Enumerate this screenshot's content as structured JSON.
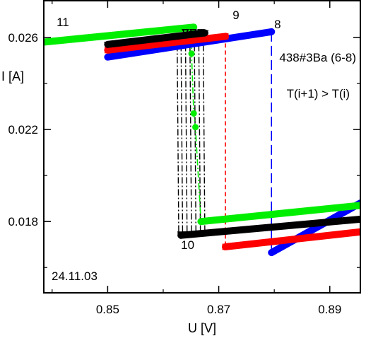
{
  "chart_data": {
    "type": "scatter",
    "xlabel": "U [V]",
    "ylabel": "I [A]",
    "xlim": [
      0.8385,
      0.8955
    ],
    "ylim": [
      0.0149,
      0.0276
    ],
    "xticks": [
      "0.85",
      "0.87",
      "0.89"
    ],
    "xtick_values": [
      0.85,
      0.87,
      0.89
    ],
    "xminor_values": [
      0.84,
      0.86,
      0.88
    ],
    "yticks": [
      "0.018",
      "0.022",
      "0.026"
    ],
    "ytick_values": [
      0.018,
      0.022,
      0.026
    ],
    "yminor_values": [
      0.016,
      0.02,
      0.024
    ],
    "grid": false,
    "annotations": [
      {
        "key": "sample",
        "text": "438#3Ba (6-8)",
        "anchor": "upper-right"
      },
      {
        "key": "condition",
        "text": "T(i+1) > T(i)",
        "anchor": "upper-right"
      },
      {
        "key": "date",
        "text": "24.11.03",
        "anchor": "lower-left"
      }
    ],
    "series": [
      {
        "name": "8",
        "color": "#0000ff",
        "marker": "circle",
        "upper_branch": {
          "x": [
            0.85,
            0.8795
          ],
          "y": [
            0.02515,
            0.02625
          ]
        },
        "lower_branch": {
          "x": [
            0.8795,
            0.8955
          ],
          "y": [
            0.01665,
            0.0188
          ]
        },
        "transition_line": {
          "x": [
            0.8795,
            0.8795
          ],
          "y": [
            0.02625,
            0.01665
          ],
          "style": "long-dash"
        },
        "label_x": 0.88,
        "label_y": 0.0264
      },
      {
        "name": "9",
        "color": "#ff0000",
        "marker": "square",
        "upper_branch": {
          "x": [
            0.85,
            0.8712
          ],
          "y": [
            0.02545,
            0.02605
          ]
        },
        "lower_branch": {
          "x": [
            0.8712,
            0.8955
          ],
          "y": [
            0.0169,
            0.01755
          ]
        },
        "transition_line": {
          "x": [
            0.8712,
            0.8712
          ],
          "y": [
            0.02605,
            0.0169
          ],
          "style": "dashed"
        },
        "label_x": 0.8725,
        "label_y": 0.0268
      },
      {
        "name": "10",
        "color": "#000000",
        "marker": "triangle-down",
        "upper_branch": {
          "x": [
            0.85,
            0.8675
          ],
          "y": [
            0.0257,
            0.0262
          ]
        },
        "lower_branch": {
          "x": [
            0.8632,
            0.8955
          ],
          "y": [
            0.0174,
            0.0181
          ]
        },
        "transition_line": {
          "x": [
            0.8632,
            0.8675
          ],
          "y": [
            0.0262,
            0.0174
          ],
          "style": "dash-dot"
        },
        "label_x": 0.8632,
        "label_y": 0.0168
      },
      {
        "name": "11",
        "color": "#00ee00",
        "marker": "circle",
        "upper_branch": {
          "x": [
            0.8385,
            0.8655
          ],
          "y": [
            0.0258,
            0.02645
          ]
        },
        "lower_branch": {
          "x": [
            0.8668,
            0.8955
          ],
          "y": [
            0.018,
            0.0187
          ]
        },
        "transition_points": {
          "x": [
            0.8651,
            0.8655,
            0.8658
          ],
          "y": [
            0.0253,
            0.0227,
            0.0221
          ]
        },
        "transition_line": {
          "x": [
            0.8651,
            0.8668
          ],
          "y": [
            0.0253,
            0.018
          ],
          "style": "dash-dot"
        },
        "label_x": 0.8408,
        "label_y": 0.0265
      }
    ]
  }
}
